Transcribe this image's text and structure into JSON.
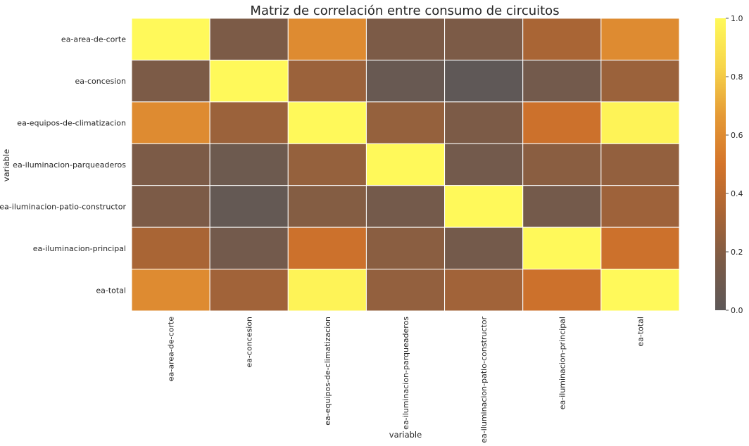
{
  "chart_data": {
    "type": "heatmap",
    "title": "Matriz de correlación entre consumo de circuitos",
    "xlabel": "variable",
    "ylabel": "variable",
    "x_categories": [
      "ea-area-de-corte",
      "ea-concesion",
      "ea-equipos-de-climatizacion",
      "ea-iluminacion-parqueaderos",
      "ea-iluminacion-patio-constructor",
      "ea-iluminacion-principal",
      "ea-total"
    ],
    "y_categories": [
      "ea-area-de-corte",
      "ea-concesion",
      "ea-equipos-de-climatizacion",
      "ea-iluminacion-parqueaderos",
      "ea-iluminacion-patio-constructor",
      "ea-iluminacion-principal",
      "ea-total"
    ],
    "values": [
      [
        1.0,
        0.17,
        0.6,
        0.17,
        0.17,
        0.33,
        0.6
      ],
      [
        0.17,
        1.0,
        0.28,
        0.06,
        0.01,
        0.12,
        0.28
      ],
      [
        0.6,
        0.28,
        1.0,
        0.26,
        0.17,
        0.47,
        0.97
      ],
      [
        0.17,
        0.09,
        0.26,
        1.0,
        0.12,
        0.22,
        0.25
      ],
      [
        0.17,
        0.04,
        0.2,
        0.13,
        1.0,
        0.13,
        0.29
      ],
      [
        0.33,
        0.12,
        0.47,
        0.22,
        0.13,
        1.0,
        0.47
      ],
      [
        0.6,
        0.3,
        0.97,
        0.25,
        0.3,
        0.47,
        1.0
      ]
    ],
    "colorbar": {
      "min": 0.0,
      "max": 1.0,
      "ticks": [
        "0.0",
        "0.2",
        "0.4",
        "0.6",
        "0.8",
        "1.0"
      ],
      "colors": [
        "#5d5858",
        "#7b5b47",
        "#aa6535",
        "#d4742a",
        "#e59a35",
        "#f7d54a",
        "#fff95a"
      ]
    },
    "grid_lines": "white"
  }
}
